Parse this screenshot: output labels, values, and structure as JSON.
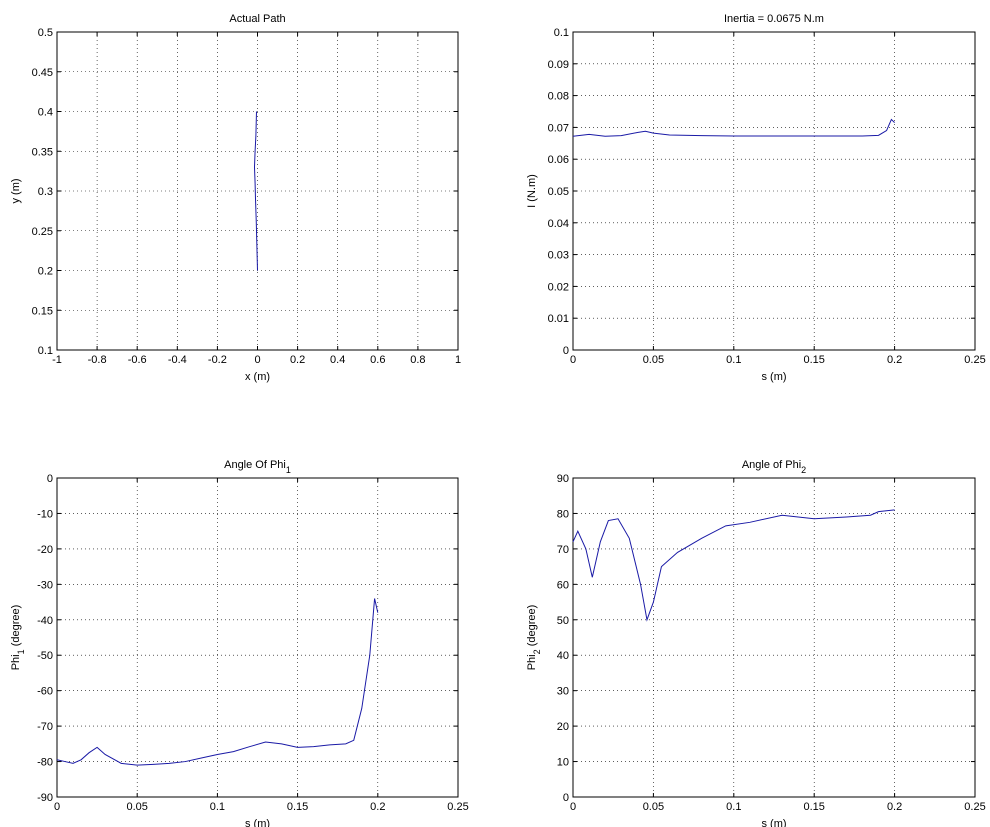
{
  "chart_data": [
    {
      "type": "line",
      "title": "Actual Path",
      "xlabel": "x (m)",
      "ylabel": "y (m)",
      "x": [
        0,
        -0.003,
        -0.006,
        -0.01,
        -0.012,
        -0.015,
        -0.012,
        -0.008,
        -0.005
      ],
      "values": [
        0.2,
        0.23,
        0.26,
        0.29,
        0.31,
        0.33,
        0.35,
        0.37,
        0.4
      ],
      "color": "#1a1aa6",
      "xlim": [
        -1,
        1
      ],
      "xticks": [
        -1,
        -0.8,
        -0.6,
        -0.4,
        -0.2,
        0,
        0.2,
        0.4,
        0.6,
        0.8,
        1
      ],
      "ylim": [
        0.1,
        0.5
      ],
      "yticks": [
        0.1,
        0.15,
        0.2,
        0.25,
        0.3,
        0.35,
        0.4,
        0.45,
        0.5
      ],
      "grid": true
    },
    {
      "type": "line",
      "title": "Inertia = 0.0675 N.m",
      "xlabel": "s (m)",
      "ylabel": "I (N.m)",
      "x": [
        0,
        0.01,
        0.02,
        0.03,
        0.04,
        0.045,
        0.05,
        0.06,
        0.08,
        0.1,
        0.12,
        0.14,
        0.16,
        0.18,
        0.19,
        0.195,
        0.198,
        0.2
      ],
      "values": [
        0.0672,
        0.0678,
        0.0672,
        0.0674,
        0.0684,
        0.0688,
        0.0682,
        0.0676,
        0.0674,
        0.0673,
        0.0673,
        0.0673,
        0.0673,
        0.0673,
        0.0675,
        0.069,
        0.0725,
        0.0715
      ],
      "color": "#1a1aa6",
      "xlim": [
        0,
        0.25
      ],
      "xticks": [
        0,
        0.05,
        0.1,
        0.15,
        0.2,
        0.25
      ],
      "ylim": [
        0,
        0.1
      ],
      "yticks": [
        0,
        0.01,
        0.02,
        0.03,
        0.04,
        0.05,
        0.06,
        0.07,
        0.08,
        0.09,
        0.1
      ],
      "grid": true
    },
    {
      "type": "line",
      "title": {
        "text": "Angle Of Phi",
        "subscript": "1"
      },
      "xlabel": "s (m)",
      "ylabel": {
        "text": "Phi",
        "subscript": "1",
        "suffix": " (degree)"
      },
      "x": [
        0,
        0.005,
        0.01,
        0.015,
        0.02,
        0.025,
        0.03,
        0.04,
        0.05,
        0.06,
        0.07,
        0.08,
        0.09,
        0.1,
        0.11,
        0.12,
        0.13,
        0.14,
        0.15,
        0.16,
        0.17,
        0.18,
        0.185,
        0.19,
        0.195,
        0.198,
        0.2
      ],
      "values": [
        -79.5,
        -80,
        -80.5,
        -79.5,
        -77.5,
        -76,
        -78,
        -80.5,
        -81,
        -80.8,
        -80.5,
        -80,
        -79,
        -78,
        -77.2,
        -75.8,
        -74.5,
        -75,
        -76,
        -75.8,
        -75.3,
        -75,
        -74,
        -65,
        -50,
        -34,
        -38
      ],
      "color": "#1a1aa6",
      "xlim": [
        0,
        0.25
      ],
      "xticks": [
        0,
        0.05,
        0.1,
        0.15,
        0.2,
        0.25
      ],
      "ylim": [
        -90,
        0
      ],
      "yticks": [
        -90,
        -80,
        -70,
        -60,
        -50,
        -40,
        -30,
        -20,
        -10,
        0
      ],
      "grid": true
    },
    {
      "type": "line",
      "title": {
        "text": "Angle of Phi",
        "subscript": "2"
      },
      "xlabel": "s (m)",
      "ylabel": {
        "text": "Phi",
        "subscript": "2",
        "suffix": " (degree)"
      },
      "x": [
        0,
        0.003,
        0.008,
        0.012,
        0.017,
        0.022,
        0.028,
        0.035,
        0.042,
        0.046,
        0.05,
        0.055,
        0.065,
        0.08,
        0.095,
        0.11,
        0.13,
        0.15,
        0.17,
        0.185,
        0.19,
        0.2
      ],
      "values": [
        72,
        75,
        70,
        62,
        72,
        78,
        78.5,
        73,
        60,
        50,
        55,
        65,
        69,
        73,
        76.5,
        77.5,
        79.5,
        78.5,
        79,
        79.5,
        80.5,
        81
      ],
      "color": "#1a1aa6",
      "xlim": [
        0,
        0.25
      ],
      "xticks": [
        0,
        0.05,
        0.1,
        0.15,
        0.2,
        0.25
      ],
      "ylim": [
        0,
        90
      ],
      "yticks": [
        0,
        10,
        20,
        30,
        40,
        50,
        60,
        70,
        80,
        90
      ],
      "grid": true
    }
  ]
}
